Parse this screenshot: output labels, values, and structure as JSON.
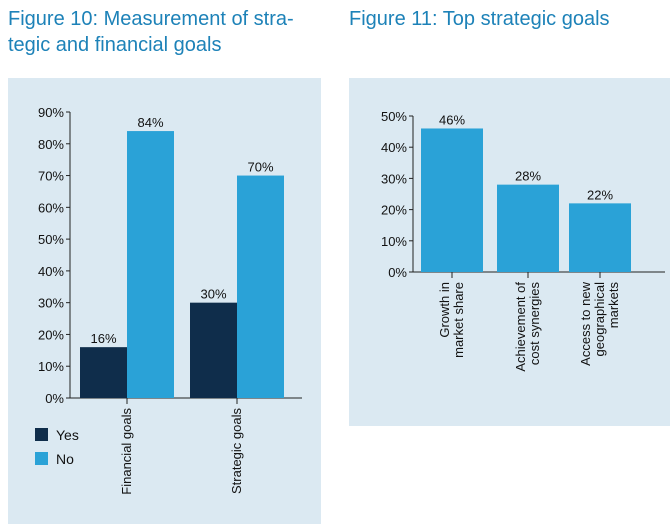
{
  "figure10": {
    "title_line1": "Figure 10: Measurement of stra-",
    "title_line2": "tegic and financial goals"
  },
  "figure11": {
    "title": "Figure 11: Top strategic goals"
  },
  "colors": {
    "yes": "#0f2d4b",
    "no": "#2aa2d7",
    "panel": "#dbe9f2",
    "title": "#1d82b8"
  },
  "chart_data": [
    {
      "type": "bar",
      "title": "Figure 10: Measurement of strategic and financial goals",
      "categories": [
        "Financial goals",
        "Strategic goals"
      ],
      "series": [
        {
          "name": "Yes",
          "values": [
            16,
            30
          ],
          "labels": [
            "16%",
            "30%"
          ]
        },
        {
          "name": "No",
          "values": [
            84,
            70
          ],
          "labels": [
            "84%",
            "70%"
          ]
        }
      ],
      "yticks": [
        "0%",
        "10%",
        "20%",
        "30%",
        "40%",
        "50%",
        "60%",
        "70%",
        "80%",
        "90%"
      ],
      "ylim": [
        0,
        90
      ],
      "legend": [
        "Yes",
        "No"
      ],
      "legend_position": "bottom-left",
      "xlabel": "",
      "ylabel": ""
    },
    {
      "type": "bar",
      "title": "Figure 11: Top strategic goals",
      "categories": [
        [
          "Growth in",
          "market share"
        ],
        [
          "Achievement of",
          "cost synergies"
        ],
        [
          "Access to new",
          "geographical",
          "markets"
        ]
      ],
      "values": [
        46,
        28,
        22
      ],
      "labels": [
        "46%",
        "28%",
        "22%"
      ],
      "yticks": [
        "0%",
        "10%",
        "20%",
        "30%",
        "40%",
        "50%"
      ],
      "ylim": [
        0,
        50
      ],
      "xlabel": "",
      "ylabel": ""
    }
  ]
}
